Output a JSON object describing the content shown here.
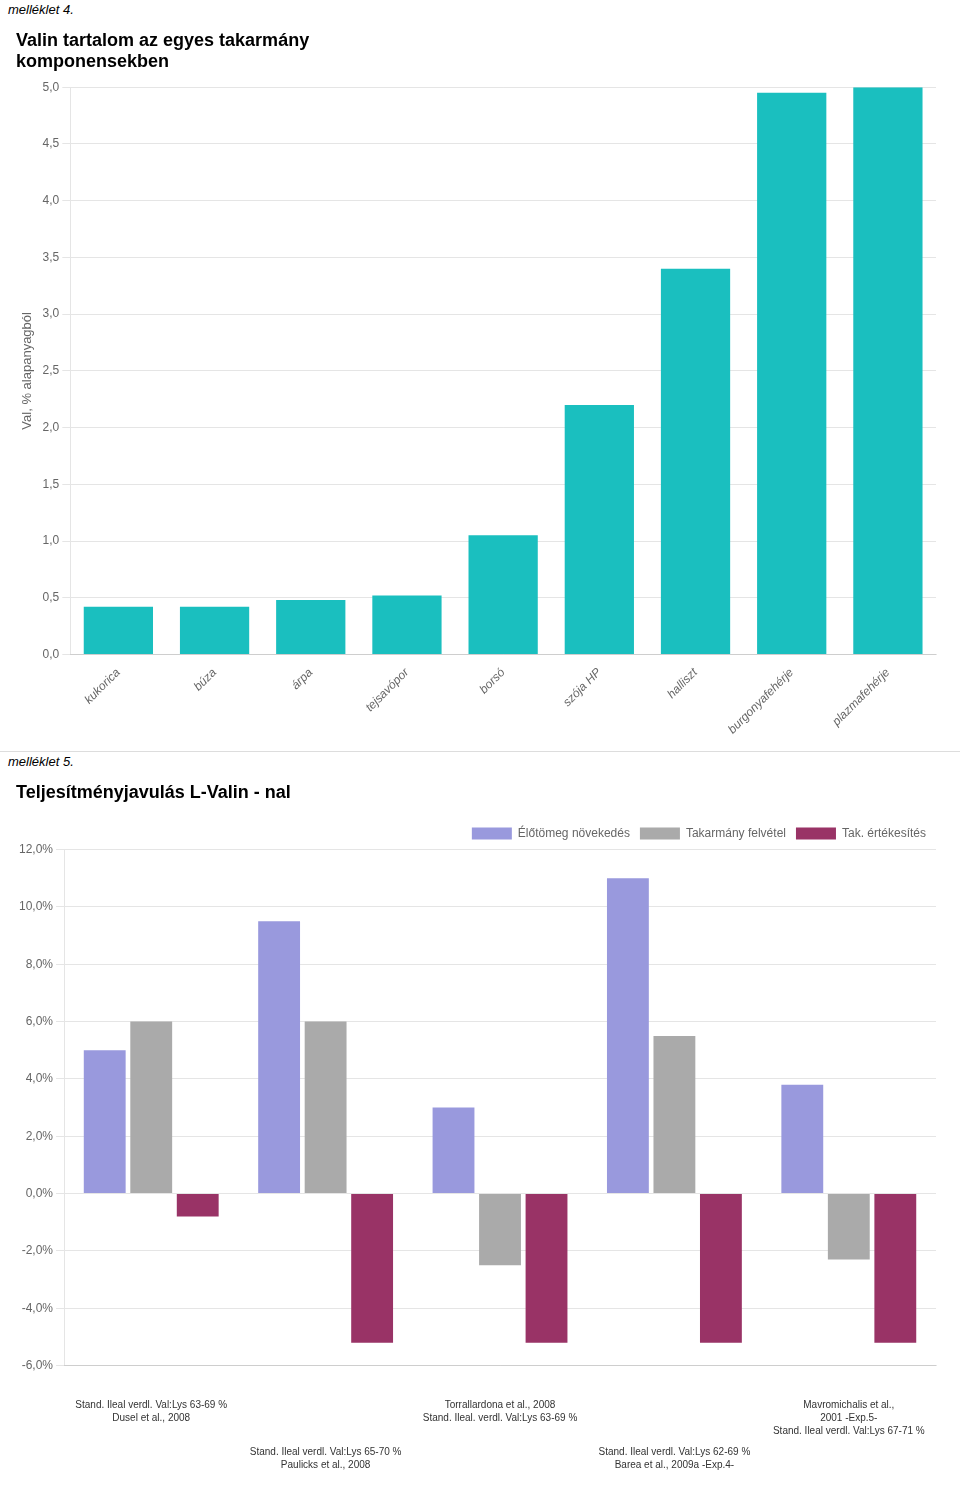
{
  "chart_data": [
    {
      "type": "bar",
      "title": "Valin tartalom az egyes takarmány\nkomponensekben",
      "subtitle": "melléklet 4.",
      "ylabel": "Val, % alapanyagból",
      "categories": [
        "kukorica",
        "búza",
        "árpa",
        "tejsavópor",
        "borsó",
        "szója HP",
        "halliszt",
        "burgonyafehérje",
        "plazmafehérje"
      ],
      "values": [
        0.42,
        0.42,
        0.48,
        0.52,
        1.05,
        2.2,
        3.4,
        4.95,
        5.0
      ],
      "color": "#1ABFBF",
      "ylim": [
        0.0,
        5.0
      ],
      "yticks": [
        {
          "value": 0.0,
          "label": "0,0"
        },
        {
          "value": 0.5,
          "label": "0,5"
        },
        {
          "value": 1.0,
          "label": "1,0"
        },
        {
          "value": 1.5,
          "label": "1,5"
        },
        {
          "value": 2.0,
          "label": "2,0"
        },
        {
          "value": 2.5,
          "label": "2,5"
        },
        {
          "value": 3.0,
          "label": "3,0"
        },
        {
          "value": 3.5,
          "label": "3,5"
        },
        {
          "value": 4.0,
          "label": "4,0"
        },
        {
          "value": 4.5,
          "label": "4,5"
        },
        {
          "value": 5.0,
          "label": "5,0"
        }
      ],
      "grid": true
    },
    {
      "type": "bar",
      "title": "Teljesítményjavulás L-Valin - nal",
      "subtitle": "melléklet 5.",
      "categories": [
        null,
        null,
        null,
        null,
        null
      ],
      "series": [
        {
          "name": "Élőtömeg növekedés",
          "color": "#9999DD",
          "values": [
            5.0,
            9.5,
            3.0,
            11.0,
            3.8
          ]
        },
        {
          "name": "Takarmány felvétel",
          "color": "#AAAAAA",
          "values": [
            6.0,
            6.0,
            -2.5,
            5.5,
            -2.3
          ]
        },
        {
          "name": "Tak. értékesítés",
          "color": "#993366",
          "values": [
            -0.8,
            -5.2,
            -5.2,
            -5.2,
            -5.2
          ]
        }
      ],
      "ylim": [
        -6.0,
        12.0
      ],
      "yticks": [
        {
          "value": -6.0,
          "label": "-6,0%"
        },
        {
          "value": -4.0,
          "label": "-4,0%"
        },
        {
          "value": -2.0,
          "label": "-2,0%"
        },
        {
          "value": 0.0,
          "label": "0,0%"
        },
        {
          "value": 2.0,
          "label": "2,0%"
        },
        {
          "value": 4.0,
          "label": "4,0%"
        },
        {
          "value": 6.0,
          "label": "6,0%"
        },
        {
          "value": 8.0,
          "label": "8,0%"
        },
        {
          "value": 10.0,
          "label": "10,0%"
        },
        {
          "value": 12.0,
          "label": "12,0%"
        }
      ],
      "grid": true,
      "legend": "upper right",
      "annotations": [
        "Stand. Ileal verdl. Val:Lys 63-69 %\nDusel et al., 2008",
        "Stand. Ileal verdl. Val:Lys 65-70 %\nPaulicks et al., 2008",
        "Torrallardona et al., 2008\nStand. Ileal. verdl. Val:Lys 63-69 %",
        "Stand. Ileal verdl. Val:Lys 62-69 %\nBarea et al., 2009a -Exp.4-",
        "Mavromichalis et al.,\n2001 -Exp.5-\nStand. Ileal verdl. Val:Lys 67-71 %"
      ]
    }
  ]
}
